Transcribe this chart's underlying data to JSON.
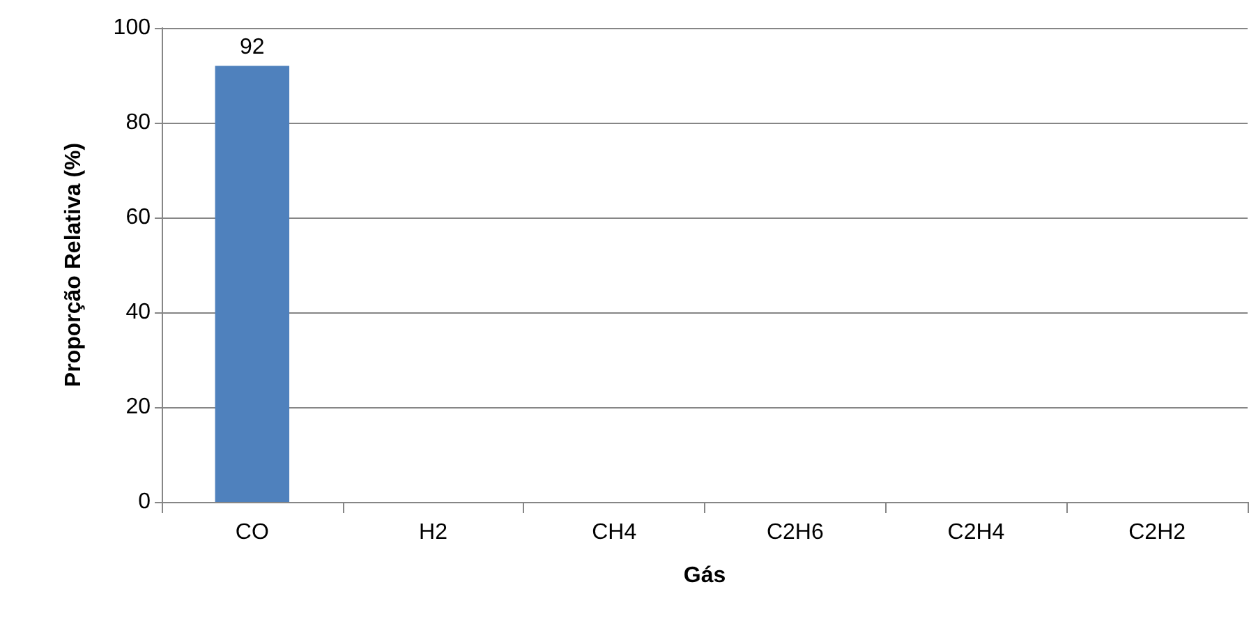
{
  "chart_data": {
    "type": "bar",
    "xlabel": "Gás",
    "ylabel": "Proporção Relativa (%)",
    "categories": [
      "CO",
      "H2",
      "CH4",
      "C2H6",
      "C2H4",
      "C2H2"
    ],
    "values": [
      92,
      0,
      0,
      0,
      0,
      0
    ],
    "value_labels": [
      "92",
      null,
      null,
      null,
      null,
      null
    ],
    "color": "#4f81bd",
    "ylim": [
      0,
      100
    ],
    "yticks": [
      0,
      20,
      40,
      60,
      80,
      100
    ],
    "grid": "y"
  }
}
